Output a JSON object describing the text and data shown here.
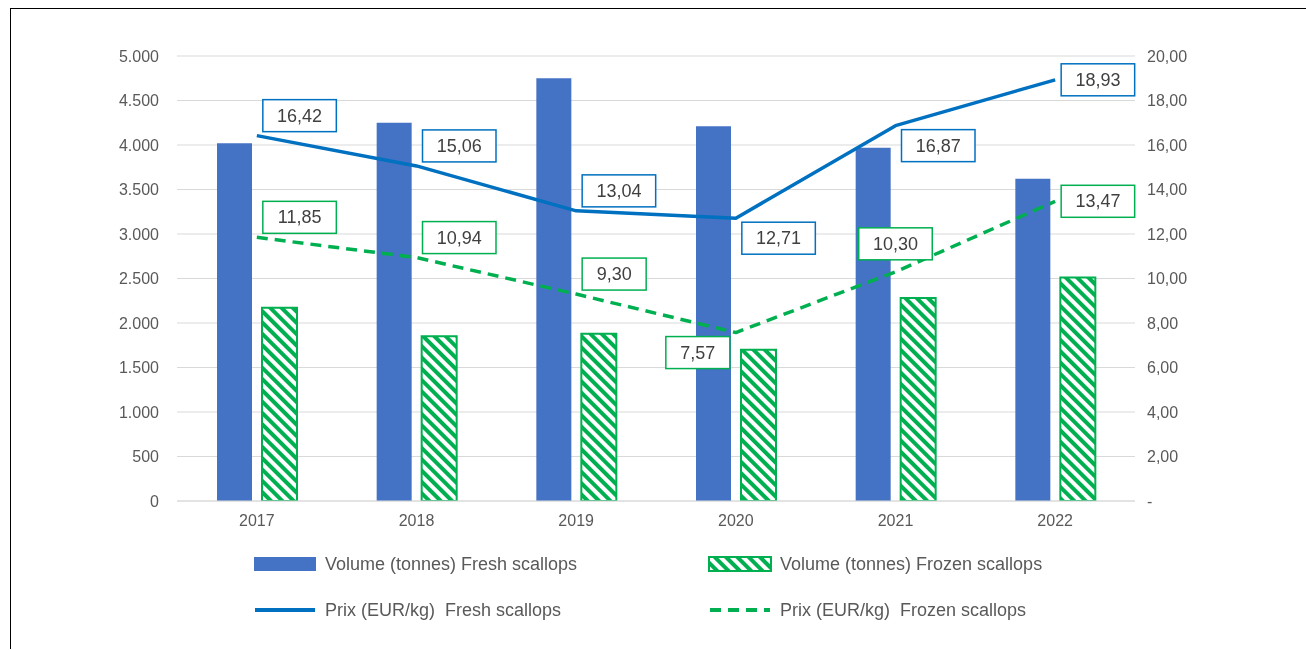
{
  "chart_data": {
    "type": "bar",
    "categories": [
      "2017",
      "2018",
      "2019",
      "2020",
      "2021",
      "2022"
    ],
    "series": [
      {
        "name": "Volume (tonnes) Fresh scallops",
        "color": "#4472c4",
        "values": [
          4020,
          4250,
          4750,
          4210,
          3970,
          3620
        ]
      },
      {
        "name": "Volume (tonnes) Frozen scallops",
        "color": "#00b050",
        "values": [
          2170,
          1850,
          1880,
          1700,
          2280,
          2510
        ]
      },
      {
        "name": "Prix (EUR/kg)  Fresh scallops",
        "type": "line",
        "axis": "y2",
        "color": "#0070c0",
        "line_style": "solid",
        "values": [
          16.42,
          15.06,
          13.04,
          12.71,
          16.87,
          18.93
        ],
        "value_labels": [
          "16,42",
          "15,06",
          "13,04",
          "12,71",
          "16,87",
          "18,93"
        ]
      },
      {
        "name": "Prix (EUR/kg)  Frozen scallops",
        "type": "line",
        "axis": "y2",
        "color": "#00b050",
        "line_style": "dashed",
        "values": [
          11.85,
          10.94,
          9.3,
          7.57,
          10.3,
          13.47
        ],
        "value_labels": [
          "11,85",
          "10,94",
          "9,30",
          "7,57",
          "10,30",
          "13,47"
        ]
      }
    ],
    "ylim": [
      0,
      5000
    ],
    "yticks": [
      0,
      500,
      {
        "value": 1000,
        "label": "1.000"
      },
      {
        "value": 1500,
        "label": "1.500"
      },
      {
        "value": 2000,
        "label": "2.000"
      },
      {
        "value": 2500,
        "label": "2.500"
      },
      {
        "value": 3000,
        "label": "3.000"
      },
      {
        "value": 3500,
        "label": "3.500"
      },
      {
        "value": 4000,
        "label": "4.000"
      },
      {
        "value": 4500,
        "label": "4.500"
      },
      {
        "value": 5000,
        "label": "5.000"
      }
    ],
    "y2lim": [
      0,
      20
    ],
    "y2ticks": [
      {
        "value": 0,
        "label": "-"
      },
      {
        "value": 2,
        "label": "2,00"
      },
      {
        "value": 4,
        "label": "4,00"
      },
      {
        "value": 6,
        "label": "6,00"
      },
      {
        "value": 8,
        "label": "8,00"
      },
      {
        "value": 10,
        "label": "10,00"
      },
      {
        "value": 12,
        "label": "12,00"
      },
      {
        "value": 14,
        "label": "14,00"
      },
      {
        "value": 16,
        "label": "16,00"
      },
      {
        "value": 18,
        "label": "18,00"
      },
      {
        "value": 20,
        "label": "20,00"
      }
    ],
    "grid": "y",
    "legend": "bottom",
    "marker": "none"
  }
}
